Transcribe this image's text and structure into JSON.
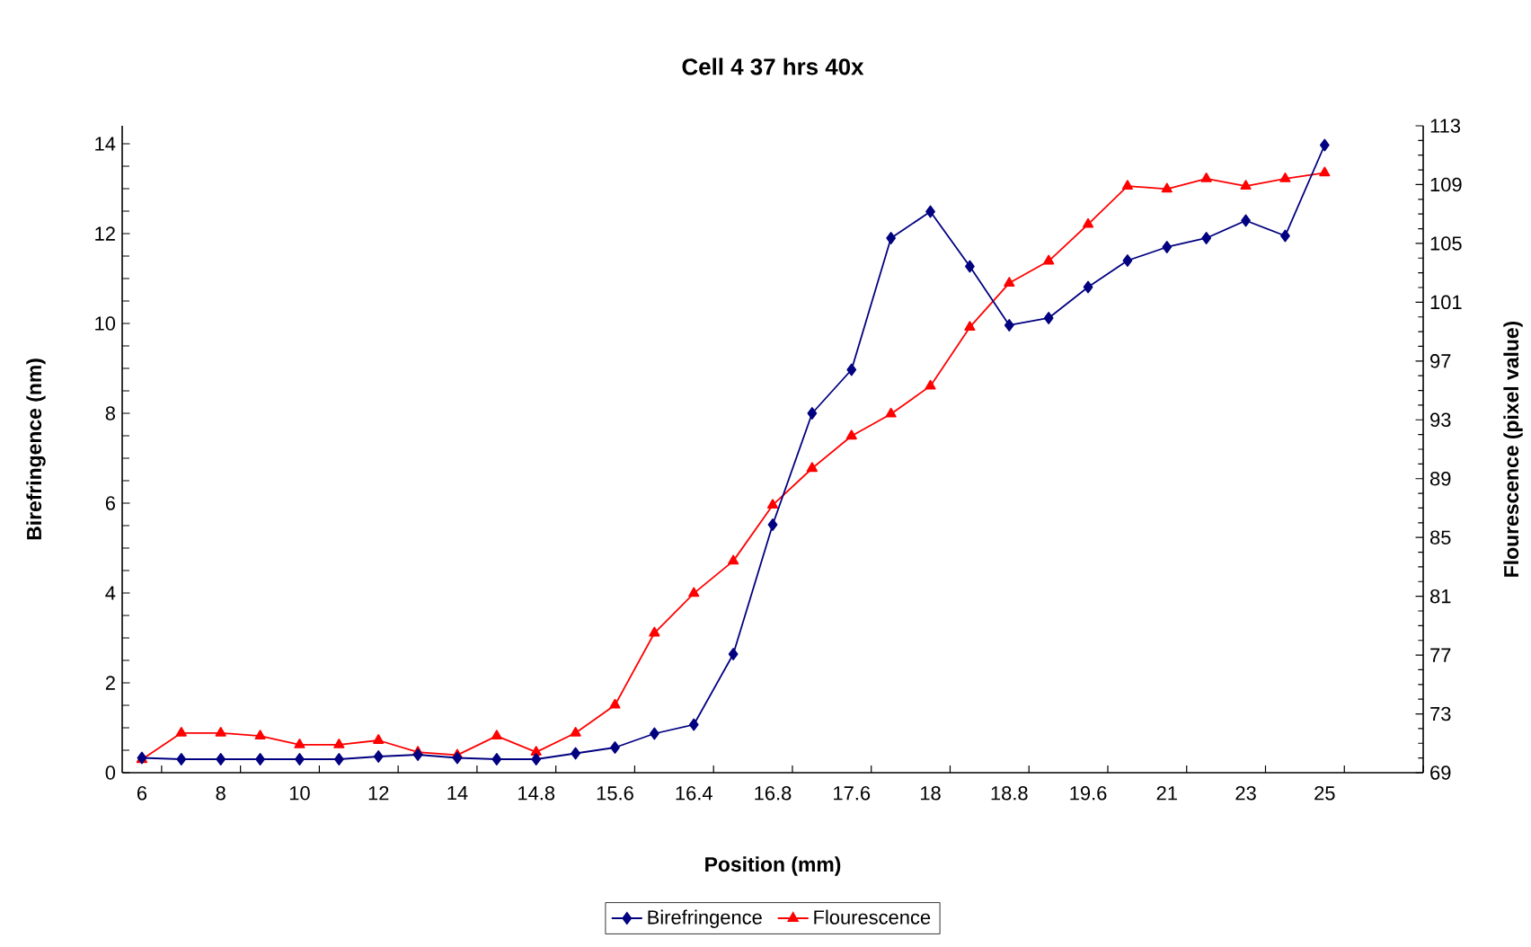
{
  "chart_data": {
    "type": "line",
    "title": "Cell 4 37 hrs 40x",
    "xlabel": "Position (mm)",
    "ylabel": "Birefringence (nm)",
    "y2label": "Flourescence (pixel value)",
    "categories": [
      "6",
      null,
      "8",
      null,
      "10",
      null,
      "12",
      null,
      "14",
      null,
      "14.8",
      null,
      "15.6",
      null,
      "16.4",
      null,
      "16.8",
      null,
      "17.6",
      null,
      "18",
      null,
      "18.8",
      null,
      "19.6",
      null,
      "21",
      null,
      "23",
      null,
      "25",
      null,
      null
    ],
    "series": [
      {
        "name": "Birefringence",
        "color": "#000080",
        "marker": "diamond",
        "values": [
          0.33,
          0.3,
          0.3,
          0.3,
          0.3,
          0.3,
          0.36,
          0.4,
          0.33,
          0.3,
          0.3,
          0.43,
          0.56,
          0.87,
          1.07,
          2.64,
          5.52,
          8.0,
          8.97,
          11.9,
          12.49,
          11.27,
          9.96,
          10.12,
          10.81,
          11.4,
          11.7,
          11.9,
          12.29,
          11.95,
          13.97,
          null,
          null
        ]
      },
      {
        "name": "Flourescence",
        "color": "#ff0000",
        "marker": "triangle",
        "axis": "y2",
        "values": [
          69.9,
          71.7,
          71.7,
          71.5,
          70.9,
          70.9,
          71.2,
          70.4,
          70.2,
          71.5,
          70.4,
          71.7,
          73.6,
          78.5,
          81.2,
          83.4,
          87.2,
          89.7,
          91.9,
          93.4,
          95.3,
          99.3,
          102.3,
          103.8,
          106.3,
          108.9,
          108.7,
          109.4,
          108.9,
          109.4,
          109.8,
          null,
          null
        ]
      }
    ],
    "ylim": [
      0,
      14.4
    ],
    "yticks": [
      0,
      2,
      4,
      6,
      8,
      10,
      12,
      14
    ],
    "y2lim": [
      69,
      113
    ],
    "y2ticks": [
      69,
      73,
      77,
      81,
      85,
      89,
      93,
      97,
      101,
      105,
      109,
      113
    ],
    "legend": "bottom",
    "line_style": "solid",
    "grid": false
  }
}
